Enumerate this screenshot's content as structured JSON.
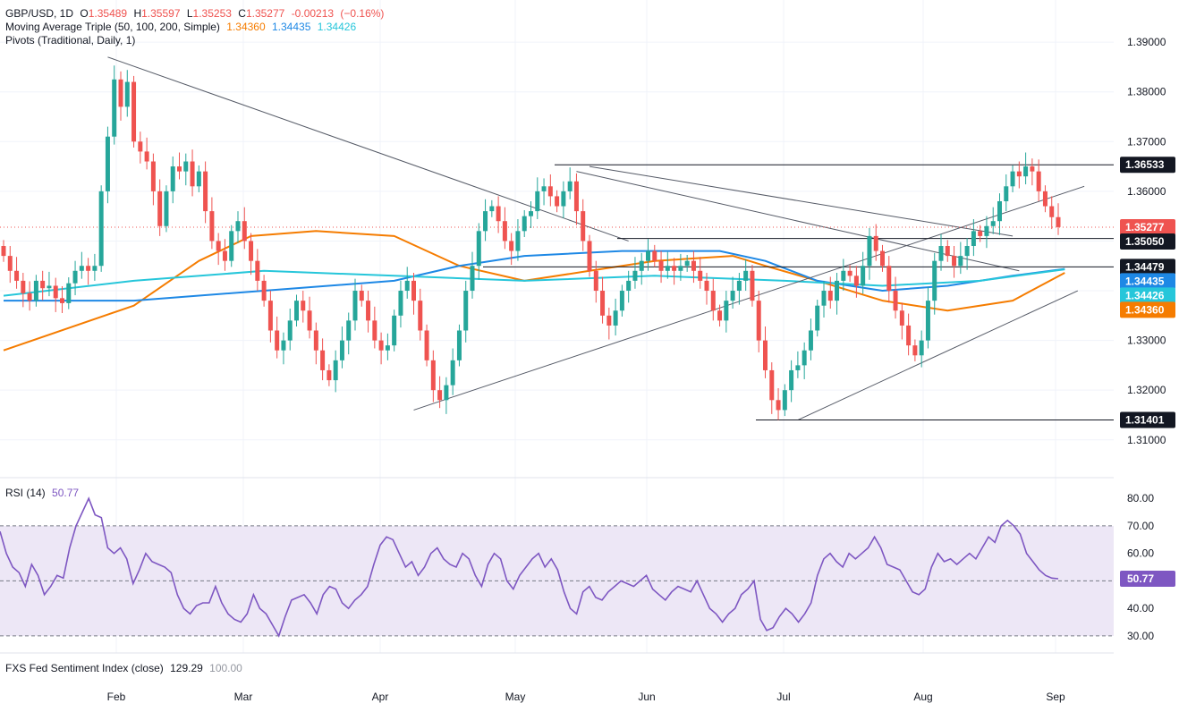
{
  "header": {
    "symbol": "GBP/USD, 1D",
    "o_label": "O",
    "open": "1.35489",
    "h_label": "H",
    "high": "1.35597",
    "l_label": "L",
    "low": "1.35253",
    "c_label": "C",
    "close": "1.35277",
    "change": "-0.00213",
    "change_pct": "(−0.16%)",
    "ma_title": "Moving Average Triple (50, 100, 200, Simple)",
    "ma50": "1.34360",
    "ma100": "1.34435",
    "ma200": "1.34426",
    "pivots_title": "Pivots (Traditional, Daily, 1)"
  },
  "rsi_legend": {
    "title": "RSI (14)",
    "value": "50.77"
  },
  "fxs_legend": {
    "title": "FXS Fed Sentiment Index (close)",
    "v1": "129.29",
    "v2": "100.00"
  },
  "colors": {
    "up": "#26a69a",
    "down": "#ef5350",
    "ma50": "#f57c00",
    "ma100": "#1e88e5",
    "ma200": "#26c6da",
    "rsi": "#7e57c2",
    "rsi_band": "#ede7f6"
  },
  "chart_data": [
    {
      "type": "candlestick",
      "symbol": "GBP/USD",
      "timeframe": "1D",
      "x_ticks": [
        "Feb",
        "Mar",
        "Apr",
        "May",
        "Jun",
        "Jul",
        "Aug",
        "Sep"
      ],
      "y_ticks": [
        "1.31000",
        "1.32000",
        "1.33000",
        "1.34000",
        "1.35000",
        "1.36000",
        "1.37000",
        "1.38000",
        "1.39000"
      ],
      "ylim": [
        1.306,
        1.392
      ],
      "price_tags": [
        {
          "value": 1.36533,
          "label": "1.36533",
          "style": "level"
        },
        {
          "value": 1.35277,
          "label": "1.35277",
          "style": "last"
        },
        {
          "value": 1.3505,
          "label": "1.35050",
          "style": "level"
        },
        {
          "value": 1.34479,
          "label": "1.34479",
          "style": "level"
        },
        {
          "value": 1.34435,
          "label": "1.34435",
          "style": "ma100"
        },
        {
          "value": 1.34426,
          "label": "1.34426",
          "style": "ma200"
        },
        {
          "value": 1.3436,
          "label": "1.34360",
          "style": "ma50"
        },
        {
          "value": 1.31401,
          "label": "1.31401",
          "style": "level"
        }
      ],
      "close_series": [
        1.347,
        1.344,
        1.342,
        1.3395,
        1.338,
        1.342,
        1.3405,
        1.341,
        1.3385,
        1.3375,
        1.3415,
        1.344,
        1.345,
        1.344,
        1.345,
        1.36,
        1.371,
        1.3825,
        1.377,
        1.382,
        1.37,
        1.368,
        1.366,
        1.36,
        1.353,
        1.36,
        1.365,
        1.364,
        1.366,
        1.361,
        1.364,
        1.356,
        1.35,
        1.348,
        1.346,
        1.352,
        1.354,
        1.35,
        1.346,
        1.342,
        1.338,
        1.332,
        1.328,
        1.33,
        1.334,
        1.338,
        1.336,
        1.332,
        1.328,
        1.324,
        1.322,
        1.326,
        1.33,
        1.334,
        1.34,
        1.338,
        1.334,
        1.33,
        1.328,
        1.329,
        1.335,
        1.34,
        1.342,
        1.338,
        1.332,
        1.326,
        1.32,
        1.318,
        1.321,
        1.326,
        1.332,
        1.34,
        1.345,
        1.352,
        1.356,
        1.357,
        1.354,
        1.35,
        1.348,
        1.352,
        1.355,
        1.356,
        1.36,
        1.361,
        1.359,
        1.357,
        1.36,
        1.362,
        1.356,
        1.35,
        1.344,
        1.34,
        1.335,
        1.333,
        1.336,
        1.34,
        1.342,
        1.344,
        1.346,
        1.348,
        1.346,
        1.344,
        1.345,
        1.344,
        1.345,
        1.346,
        1.344,
        1.342,
        1.34,
        1.336,
        1.334,
        1.338,
        1.34,
        1.342,
        1.344,
        1.338,
        1.33,
        1.324,
        1.318,
        1.316,
        1.32,
        1.324,
        1.325,
        1.328,
        1.332,
        1.337,
        1.34,
        1.338,
        1.342,
        1.344,
        1.343,
        1.341,
        1.345,
        1.351,
        1.348,
        1.345,
        1.34,
        1.336,
        1.333,
        1.329,
        1.327,
        1.33,
        1.338,
        1.346,
        1.349,
        1.347,
        1.345,
        1.347,
        1.349,
        1.352,
        1.351,
        1.353,
        1.354,
        1.358,
        1.361,
        1.364,
        1.363,
        1.365,
        1.364,
        1.36,
        1.357,
        1.3548,
        1.3528
      ],
      "moving_averages": [
        {
          "name": "MA 50",
          "color": "#f57c00",
          "points": [
            [
              0,
              1.328
            ],
            [
              20,
              1.337
            ],
            [
              30,
              1.346
            ],
            [
              38,
              1.351
            ],
            [
              48,
              1.352
            ],
            [
              60,
              1.351
            ],
            [
              70,
              1.345
            ],
            [
              80,
              1.342
            ],
            [
              90,
              1.344
            ],
            [
              100,
              1.346
            ],
            [
              112,
              1.347
            ],
            [
              117,
              1.345
            ],
            [
              125,
              1.342
            ],
            [
              135,
              1.338
            ],
            [
              145,
              1.336
            ],
            [
              155,
              1.338
            ],
            [
              163,
              1.3436
            ]
          ]
        },
        {
          "name": "MA 100",
          "color": "#1e88e5",
          "points": [
            [
              0,
              1.338
            ],
            [
              20,
              1.338
            ],
            [
              40,
              1.34
            ],
            [
              60,
              1.342
            ],
            [
              70,
              1.345
            ],
            [
              80,
              1.347
            ],
            [
              95,
              1.348
            ],
            [
              110,
              1.348
            ],
            [
              117,
              1.346
            ],
            [
              125,
              1.342
            ],
            [
              135,
              1.34
            ],
            [
              145,
              1.341
            ],
            [
              155,
              1.343
            ],
            [
              163,
              1.3444
            ]
          ]
        },
        {
          "name": "MA 200",
          "color": "#26c6da",
          "points": [
            [
              0,
              1.339
            ],
            [
              20,
              1.342
            ],
            [
              40,
              1.344
            ],
            [
              60,
              1.343
            ],
            [
              80,
              1.342
            ],
            [
              100,
              1.343
            ],
            [
              120,
              1.342
            ],
            [
              135,
              1.341
            ],
            [
              150,
              1.342
            ],
            [
              163,
              1.3443
            ]
          ]
        }
      ],
      "trendlines": [
        [
          [
            16,
            1.387
          ],
          [
            96,
            1.35
          ]
        ],
        [
          [
            90,
            1.365
          ],
          [
            155,
            1.351
          ]
        ],
        [
          [
            63,
            1.316
          ],
          [
            166,
            1.361
          ]
        ],
        [
          [
            122,
            1.314
          ],
          [
            165,
            1.34
          ]
        ],
        [
          [
            88,
            1.364
          ],
          [
            156,
            1.344
          ]
        ]
      ]
    },
    {
      "type": "line",
      "title": "RSI (14)",
      "y_ticks": [
        "30.00",
        "40.00",
        "50.00",
        "60.00",
        "70.00",
        "80.00"
      ],
      "ylim": [
        29,
        82
      ],
      "band": [
        30,
        70
      ],
      "midline": 50,
      "value_label": "50.77",
      "values": [
        68,
        60,
        55,
        53,
        48,
        56,
        52,
        45,
        48,
        52,
        51,
        62,
        70,
        75,
        80,
        74,
        73,
        62,
        60,
        62,
        58,
        49,
        54,
        60,
        57,
        56,
        55,
        53,
        45,
        40,
        38,
        41,
        42,
        42,
        48,
        42,
        38,
        36,
        35,
        38,
        45,
        40,
        38,
        34,
        30,
        37,
        43,
        44,
        45,
        42,
        38,
        45,
        48,
        47,
        42,
        40,
        43,
        45,
        48,
        56,
        63,
        66,
        65,
        60,
        55,
        57,
        52,
        55,
        60,
        62,
        58,
        56,
        55,
        60,
        58,
        52,
        48,
        56,
        60,
        58,
        50,
        47,
        52,
        55,
        58,
        60,
        55,
        58,
        54,
        46,
        40,
        38,
        46,
        48,
        44,
        43,
        46,
        48,
        50,
        49,
        48,
        50,
        52,
        47,
        45,
        43,
        46,
        48,
        47,
        46,
        50,
        45,
        40,
        38,
        35,
        38,
        40,
        45,
        47,
        50,
        36,
        32,
        33,
        37,
        40,
        38,
        35,
        38,
        42,
        52,
        58,
        60,
        57,
        55,
        60,
        58,
        60,
        62,
        66,
        62,
        56,
        55,
        54,
        50,
        46,
        45,
        47,
        55,
        60,
        57,
        58,
        56,
        58,
        60,
        58,
        62,
        66,
        64,
        70,
        72,
        70,
        67,
        60,
        57,
        54,
        52,
        51,
        50.77
      ]
    }
  ]
}
